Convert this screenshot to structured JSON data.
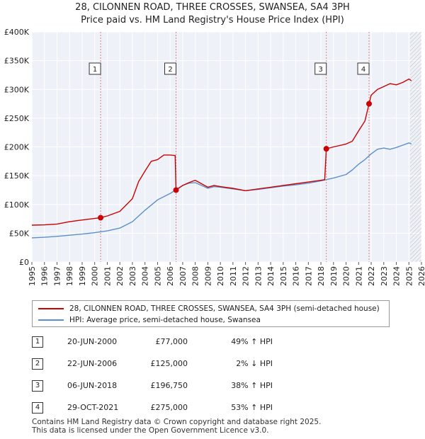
{
  "chart_data": {
    "type": "line",
    "title": "28, CILONNEN ROAD, THREE CROSSES, SWANSEA, SA4 3PH",
    "subtitle": "Price paid vs. HM Land Registry's House Price Index (HPI)",
    "ylim": [
      0,
      400000
    ],
    "xlim": [
      1995,
      2026
    ],
    "y_ticks": [
      0,
      50000,
      100000,
      150000,
      200000,
      250000,
      300000,
      350000,
      400000
    ],
    "y_tick_labels": [
      "£0",
      "£50K",
      "£100K",
      "£150K",
      "£200K",
      "£250K",
      "£300K",
      "£350K",
      "£400K"
    ],
    "x_ticks": [
      "1995",
      "1996",
      "1997",
      "1998",
      "1999",
      "2000",
      "2001",
      "2002",
      "2003",
      "2004",
      "2005",
      "2006",
      "2007",
      "2008",
      "2009",
      "2010",
      "2011",
      "2012",
      "2013",
      "2014",
      "2015",
      "2016",
      "2017",
      "2018",
      "2019",
      "2020",
      "2021",
      "2022",
      "2023",
      "2024",
      "2025",
      "2026"
    ],
    "projection_start": 2025.1,
    "series": [
      {
        "name": "28, CILONNEN ROAD, THREE CROSSES, SWANSEA, SA4 3PH (semi-detached house)",
        "color": "#cc0000",
        "points": [
          [
            1995.0,
            64000
          ],
          [
            1996.0,
            64500
          ],
          [
            1997.0,
            66000
          ],
          [
            1998.0,
            70000
          ],
          [
            1999.0,
            73000
          ],
          [
            2000.47,
            77000
          ],
          [
            2001.0,
            80000
          ],
          [
            2002.0,
            88000
          ],
          [
            2003.0,
            110000
          ],
          [
            2003.5,
            140000
          ],
          [
            2004.0,
            158000
          ],
          [
            2004.5,
            175000
          ],
          [
            2005.0,
            178000
          ],
          [
            2005.5,
            186000
          ],
          [
            2006.0,
            186000
          ],
          [
            2006.4,
            185000
          ],
          [
            2006.47,
            125000
          ],
          [
            2007.0,
            133000
          ],
          [
            2007.5,
            138000
          ],
          [
            2008.0,
            142000
          ],
          [
            2008.5,
            136000
          ],
          [
            2009.0,
            130000
          ],
          [
            2009.5,
            133000
          ],
          [
            2010.0,
            131000
          ],
          [
            2011.0,
            128000
          ],
          [
            2012.0,
            124000
          ],
          [
            2013.0,
            127000
          ],
          [
            2014.0,
            130000
          ],
          [
            2015.0,
            133000
          ],
          [
            2016.0,
            136000
          ],
          [
            2017.0,
            139000
          ],
          [
            2018.0,
            142000
          ],
          [
            2018.3,
            143000
          ],
          [
            2018.43,
            196750
          ],
          [
            2019.0,
            200000
          ],
          [
            2020.0,
            205000
          ],
          [
            2020.5,
            210000
          ],
          [
            2021.0,
            228000
          ],
          [
            2021.5,
            245000
          ],
          [
            2021.83,
            275000
          ],
          [
            2022.0,
            290000
          ],
          [
            2022.5,
            300000
          ],
          [
            2023.0,
            305000
          ],
          [
            2023.5,
            310000
          ],
          [
            2024.0,
            308000
          ],
          [
            2024.5,
            312000
          ],
          [
            2025.0,
            318000
          ],
          [
            2025.2,
            315000
          ]
        ]
      },
      {
        "name": "HPI: Average price, semi-detached house, Swansea",
        "color": "#5b8fc9",
        "points": [
          [
            1995.0,
            42000
          ],
          [
            1996.0,
            43000
          ],
          [
            1997.0,
            44500
          ],
          [
            1998.0,
            46500
          ],
          [
            1999.0,
            48500
          ],
          [
            2000.0,
            51000
          ],
          [
            2001.0,
            54000
          ],
          [
            2002.0,
            59000
          ],
          [
            2003.0,
            70000
          ],
          [
            2004.0,
            90000
          ],
          [
            2005.0,
            108000
          ],
          [
            2006.0,
            119000
          ],
          [
            2006.5,
            126000
          ],
          [
            2007.0,
            133000
          ],
          [
            2007.5,
            137000
          ],
          [
            2008.0,
            138000
          ],
          [
            2008.5,
            133000
          ],
          [
            2009.0,
            128000
          ],
          [
            2009.5,
            131000
          ],
          [
            2010.0,
            130000
          ],
          [
            2011.0,
            127000
          ],
          [
            2012.0,
            124000
          ],
          [
            2013.0,
            126000
          ],
          [
            2014.0,
            129000
          ],
          [
            2015.0,
            132000
          ],
          [
            2016.0,
            134000
          ],
          [
            2017.0,
            137000
          ],
          [
            2018.0,
            141000
          ],
          [
            2019.0,
            146000
          ],
          [
            2020.0,
            152000
          ],
          [
            2020.5,
            160000
          ],
          [
            2021.0,
            170000
          ],
          [
            2021.5,
            178000
          ],
          [
            2022.0,
            188000
          ],
          [
            2022.5,
            196000
          ],
          [
            2023.0,
            198000
          ],
          [
            2023.5,
            196000
          ],
          [
            2024.0,
            199000
          ],
          [
            2024.5,
            203000
          ],
          [
            2025.0,
            207000
          ],
          [
            2025.2,
            205000
          ]
        ]
      }
    ],
    "markers": [
      {
        "label": "1",
        "x": 2000.47,
        "y": 77000
      },
      {
        "label": "2",
        "x": 2006.47,
        "y": 125000
      },
      {
        "label": "3",
        "x": 2018.43,
        "y": 196750
      },
      {
        "label": "4",
        "x": 2021.83,
        "y": 275000
      }
    ]
  },
  "legend": {
    "property_label": "28, CILONNEN ROAD, THREE CROSSES, SWANSEA, SA4 3PH (semi-detached house)",
    "hpi_label": "HPI: Average price, semi-detached house, Swansea",
    "property_color": "#cc0000",
    "hpi_color": "#5b8fc9"
  },
  "sales": [
    {
      "num": "1",
      "date": "20-JUN-2000",
      "price": "£77,000",
      "hpi": "49% ↑ HPI"
    },
    {
      "num": "2",
      "date": "22-JUN-2006",
      "price": "£125,000",
      "hpi": "2% ↓ HPI"
    },
    {
      "num": "3",
      "date": "06-JUN-2018",
      "price": "£196,750",
      "hpi": "38% ↑ HPI"
    },
    {
      "num": "4",
      "date": "29-OCT-2021",
      "price": "£275,000",
      "hpi": "53% ↑ HPI"
    }
  ],
  "footer": {
    "line1": "Contains HM Land Registry data © Crown copyright and database right 2025.",
    "line2": "This data is licensed under the Open Government Licence v3.0."
  }
}
